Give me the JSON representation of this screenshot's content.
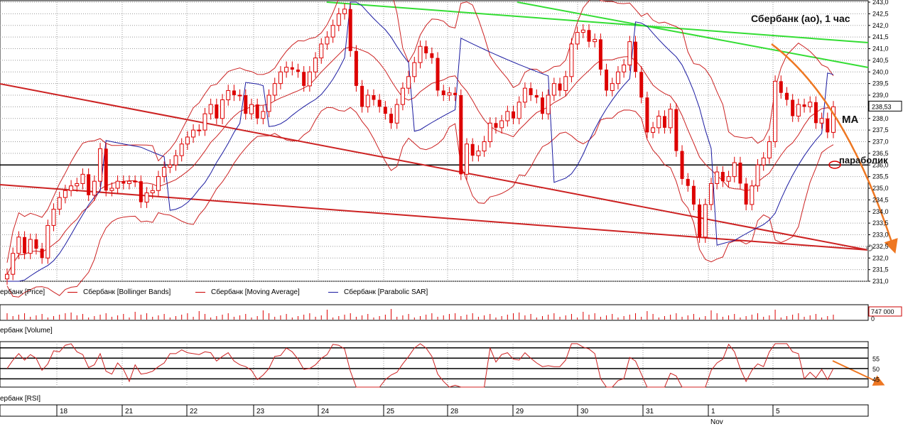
{
  "title": "Сбербанк (ао),  1 час",
  "annotations": {
    "ma": "MA",
    "parabolic": "параболик"
  },
  "legend": [
    {
      "label": "ербанк [Price]",
      "color": "#cc0000"
    },
    {
      "label": "Сбербанк [Bollinger Bands]",
      "color": "#cc0000"
    },
    {
      "label": "Сбербанк [Moving Average]",
      "color": "#cc0000"
    },
    {
      "label": "Сбербанк [Parabolic SAR]",
      "color": "#1a1aa0"
    }
  ],
  "volume_label": "ербанк [Volume]",
  "rsi_label": "ербанк [RSI]",
  "colors": {
    "candle": "#dd0000",
    "bands": "#cc2222",
    "sar": "#1a1aa0",
    "trend_red": "#cc2222",
    "trend_green": "#33dd33",
    "forecast": "#ee7722"
  },
  "chart_data": [
    {
      "type": "candlestick",
      "title": "Сбербанк (ао),  1 час",
      "ylim": [
        231.0,
        243.0
      ],
      "yticks": [
        "243,0",
        "242,5",
        "242,0",
        "241,5",
        "241,0",
        "240,5",
        "240,0",
        "239,5",
        "239,0",
        "238,5",
        "238,0",
        "237,5",
        "237,0",
        "236,5",
        "236,0",
        "235,5",
        "235,0",
        "234,5",
        "234,0",
        "233,5",
        "233,0",
        "232,5",
        "232,0",
        "231,5",
        "231,0"
      ],
      "last_price": "238,53",
      "last_price_value": 238.53,
      "support_level": 236.0,
      "dates": [
        "18",
        "21",
        "22",
        "23",
        "24",
        "25",
        "28",
        "29",
        "30",
        "31",
        "1",
        "5"
      ],
      "date_month_label": "Nov",
      "close": [
        231.3,
        232.2,
        232.9,
        232.2,
        232.8,
        232.4,
        232.0,
        233.4,
        234.1,
        234.6,
        234.9,
        235.1,
        235.2,
        235.6,
        234.7,
        235.3,
        236.7,
        234.9,
        235.0,
        235.3,
        235.2,
        235.3,
        235.3,
        234.4,
        234.8,
        234.9,
        235.5,
        235.9,
        236.0,
        236.4,
        236.9,
        237.2,
        237.5,
        237.5,
        238.2,
        238.6,
        238.0,
        238.8,
        239.2,
        239.0,
        239.0,
        238.2,
        238.6,
        238.0,
        238.3,
        239.0,
        239.5,
        240.0,
        240.2,
        240.1,
        240.0,
        239.4,
        240.0,
        240.6,
        241.2,
        241.5,
        242.0,
        242.5,
        242.7,
        240.9,
        239.4,
        238.5,
        239.0,
        238.8,
        238.5,
        238.2,
        237.8,
        238.6,
        239.3,
        239.8,
        240.4,
        241.1,
        240.8,
        240.6,
        239.2,
        239.0,
        239.1,
        239.0,
        235.6,
        236.9,
        236.4,
        236.6,
        237.0,
        237.8,
        237.6,
        237.9,
        238.3,
        238.0,
        238.7,
        239.3,
        239.0,
        238.9,
        238.2,
        239.0,
        239.5,
        239.2,
        239.8,
        241.2,
        241.7,
        241.8,
        241.3,
        241.4,
        240.1,
        239.2,
        239.5,
        240.0,
        240.3,
        241.3,
        240.0,
        238.9,
        237.4,
        237.6,
        238.1,
        237.6,
        238.4,
        236.6,
        235.4,
        235.1,
        234.3,
        232.9,
        234.3,
        235.2,
        235.7,
        235.3,
        235.5,
        236.1,
        235.2,
        234.3,
        235.1,
        236.0,
        236.3,
        237.0,
        239.6,
        239.1,
        238.8,
        238.1,
        238.6,
        238.5,
        238.7,
        237.8,
        238.0,
        237.4,
        238.5
      ],
      "series": [
        {
          "name": "Сбербанк [Price]"
        },
        {
          "name": "Сбербанк [Bollinger Bands]"
        },
        {
          "name": "Сбербанк [Moving Average]"
        },
        {
          "name": "Сбербанк [Parabolic SAR]"
        }
      ]
    },
    {
      "type": "bar",
      "series": [
        {
          "name": "Сбербанк [Volume]"
        }
      ],
      "last_value_label": "747 000",
      "ytick": "0"
    },
    {
      "type": "line",
      "series": [
        {
          "name": "Сбербанк [RSI]"
        }
      ],
      "yticks": [
        "55",
        "50",
        "45"
      ],
      "levels": [
        60,
        55,
        50,
        45
      ]
    }
  ]
}
